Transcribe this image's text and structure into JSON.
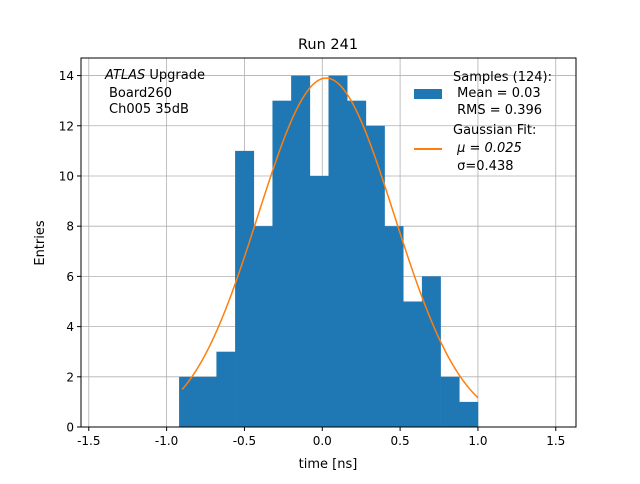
{
  "chart_data": {
    "type": "bar",
    "title": "Run 241",
    "xlabel": "time [ns]",
    "ylabel": "Entries",
    "xlim": [
      -1.55,
      1.63
    ],
    "ylim": [
      0,
      14.7
    ],
    "grid": true,
    "xticks": [
      "-1.5",
      "-1.0",
      "-0.5",
      "0.0",
      "0.5",
      "1.0",
      "1.5"
    ],
    "xtick_values": [
      -1.5,
      -1.0,
      -0.5,
      0,
      0.5,
      1.0,
      1.5
    ],
    "yticks": [
      "0",
      "2",
      "4",
      "6",
      "8",
      "10",
      "12",
      "14"
    ],
    "ytick_values": [
      0,
      2,
      4,
      6,
      8,
      10,
      12,
      14
    ],
    "bin_start": -0.92,
    "bin_width": 0.12,
    "values": [
      2,
      2,
      3,
      11,
      8,
      13,
      14,
      10,
      14,
      13,
      12,
      8,
      5,
      6,
      2,
      1
    ],
    "fit": {
      "amplitude": 13.9,
      "mu": 0.025,
      "sigma": 0.438,
      "range": [
        -0.9,
        1.0
      ]
    },
    "annotation": {
      "italic": "ATLAS",
      "rest": " Upgrade",
      "line2": "Board260",
      "line3": "Ch005 35dB"
    },
    "legend": {
      "placement": "top-right",
      "samples": [
        "Samples (124):",
        " Mean = 0.03",
        " RMS = 0.396"
      ],
      "fit": [
        "Gaussian Fit:",
        " μ = 0.025",
        " σ=0.438"
      ]
    },
    "colors": {
      "bar": "#1f77b4",
      "fit": "#ff7f0e",
      "grid": "#b0b0b0"
    }
  }
}
